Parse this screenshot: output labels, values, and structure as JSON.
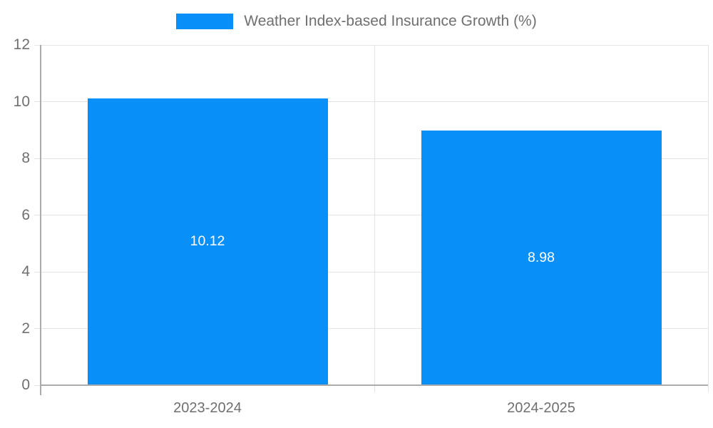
{
  "legend": {
    "label": "Weather Index-based Insurance Growth (%)"
  },
  "chart_data": {
    "type": "bar",
    "title": "Weather Index-based Insurance Growth (%)",
    "categories": [
      "2023-2024",
      "2024-2025"
    ],
    "values": [
      10.12,
      8.98
    ],
    "bar_labels": [
      "10.12",
      "8.98"
    ],
    "xlabel": "",
    "ylabel": "",
    "ylim": [
      0,
      12
    ],
    "yticks": [
      0,
      2,
      4,
      6,
      8,
      10,
      12
    ],
    "grid": true,
    "legend_position": "top-center",
    "bar_color": "#0990f8",
    "bar_label_color": "#ffffff"
  },
  "colors": {
    "background": "#ffffff",
    "grid": "#e4e4e4",
    "axis": "#ababab",
    "tick_text": "#6f6f6f"
  }
}
